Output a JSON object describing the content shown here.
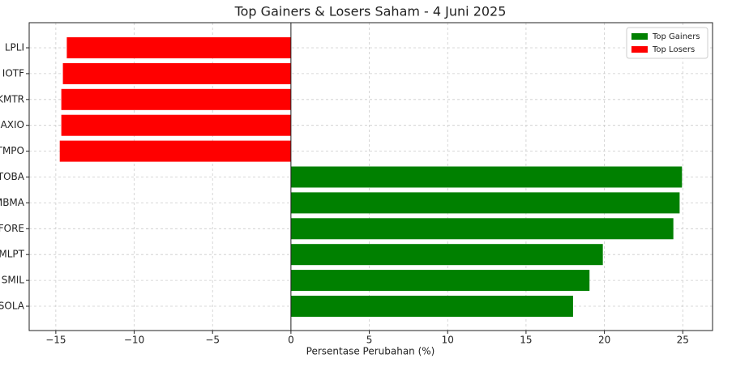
{
  "chart_data": {
    "type": "barh",
    "title": "Top Gainers & Losers Saham - 4 Juni 2025",
    "xlabel": "Persentase Perubahan (%)",
    "categories": [
      "LPLI",
      "IOTF",
      "KMTR",
      "AXIO",
      "TMPO",
      "TOBA",
      "MBMA",
      "FORE",
      "MLPT",
      "SMIL",
      "SOLA"
    ],
    "series": [
      {
        "name": "Top Gainers",
        "color": "#008000",
        "values": [
          null,
          null,
          null,
          null,
          null,
          24.95,
          24.8,
          24.4,
          19.9,
          19.05,
          18.0
        ]
      },
      {
        "name": "Top Losers",
        "color": "#ff0000",
        "values": [
          -14.3,
          -14.55,
          -14.65,
          -14.65,
          -14.75,
          null,
          null,
          null,
          null,
          null,
          null
        ]
      }
    ],
    "xlim": [
      -16.7,
      26.9
    ],
    "xticks": [
      {
        "value": -15,
        "label": "−15"
      },
      {
        "value": -10,
        "label": "−10"
      },
      {
        "value": -5,
        "label": "−5"
      },
      0,
      5,
      10,
      15,
      20,
      25
    ],
    "grid": true,
    "legend": "upper right"
  }
}
